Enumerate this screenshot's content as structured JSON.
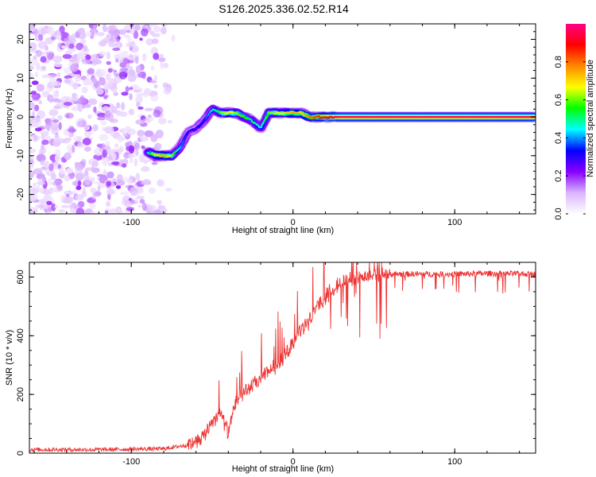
{
  "title": "S126.2025.336.02.52.R14",
  "chart_data": [
    {
      "type": "heatmap",
      "name": "spectrogram",
      "xlabel": "Height of straight line (km)",
      "ylabel": "Frequency (Hz)",
      "xlim": [
        -163,
        150
      ],
      "ylim": [
        -25,
        24
      ],
      "xticks": [
        -100,
        0,
        100
      ],
      "yticks": [
        -20,
        -10,
        0,
        10,
        20
      ],
      "colorbar": {
        "label": "Normalized spectral amplitude",
        "range": [
          0,
          1
        ],
        "ticks": [
          "0.0",
          "0.2",
          "0.4",
          "0.6",
          "0.8"
        ],
        "tick_values": [
          0.0,
          0.2,
          0.4,
          0.6,
          0.8
        ],
        "colors": [
          "#ffffff",
          "#d9b3ff",
          "#8800ff",
          "#0000ff",
          "#00ffff",
          "#00ff00",
          "#ffff00",
          "#ff8800",
          "#ff0000",
          "#ff0088"
        ]
      },
      "ridge": {
        "description_values_x": [
          -90,
          -85,
          -80,
          -75,
          -70,
          -65,
          -60,
          -55,
          -50,
          -45,
          -40,
          -35,
          -30,
          -25,
          -20,
          -15,
          -10,
          -5,
          0,
          5,
          10,
          15,
          20,
          30,
          40,
          60,
          80,
          100,
          120,
          150
        ],
        "description_values_y": [
          -9,
          -10,
          -10,
          -10,
          -8,
          -4,
          -3,
          -1,
          2,
          1,
          1,
          1,
          0,
          -1,
          -3,
          1,
          1,
          1,
          1,
          1,
          0,
          0,
          0,
          0,
          0,
          0,
          0,
          0,
          0,
          0
        ],
        "peak_amplitude": [
          0.5,
          0.7,
          0.75,
          0.6,
          0.4,
          0.3,
          0.3,
          0.35,
          0.45,
          0.6,
          0.7,
          0.6,
          0.55,
          0.5,
          0.45,
          0.6,
          0.65,
          0.7,
          0.75,
          0.7,
          0.8,
          0.85,
          0.9,
          0.95,
          0.95,
          0.95,
          0.95,
          0.95,
          0.95,
          0.95
        ]
      }
    },
    {
      "type": "line",
      "name": "snr",
      "xlabel": "Height of straight line (km)",
      "ylabel": "SNR (10 * v/v)",
      "xlim": [
        -163,
        150
      ],
      "ylim": [
        0,
        650
      ],
      "xticks": [
        -100,
        0,
        100
      ],
      "yticks": [
        0,
        200,
        400,
        600
      ],
      "color": "#ee3333",
      "envelope": {
        "x": [
          -163,
          -120,
          -80,
          -65,
          -55,
          -50,
          -45,
          -40,
          -35,
          -30,
          -25,
          -20,
          -15,
          -10,
          -5,
          0,
          5,
          10,
          15,
          20,
          25,
          30,
          35,
          40,
          50,
          60,
          80,
          100,
          120,
          150
        ],
        "y": [
          12,
          12,
          15,
          28,
          60,
          110,
          140,
          70,
          180,
          210,
          230,
          250,
          280,
          300,
          330,
          380,
          420,
          450,
          500,
          530,
          560,
          580,
          595,
          600,
          605,
          610,
          610,
          610,
          612,
          610
        ]
      }
    }
  ]
}
